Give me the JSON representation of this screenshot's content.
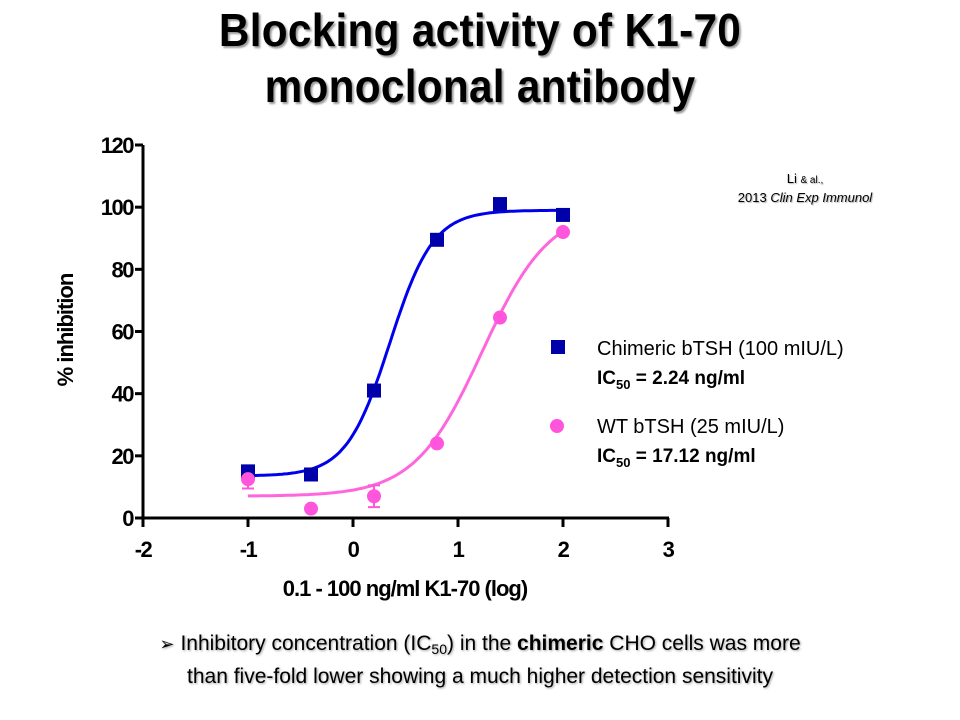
{
  "slide": {
    "title_line1": "Blocking activity of K1-70",
    "title_line2": "monoclonal antibody",
    "citation": {
      "author": "Li",
      "etal": "& al.,",
      "year": "2013",
      "journal": "Clin Exp Immunol"
    },
    "footer": {
      "bullet": "➢",
      "part1": "Inhibitory concentration (IC",
      "sub": "50",
      "part2": ") in the ",
      "bold": "chimeric",
      "part3": " CHO cells was more",
      "line2": "than five-fold lower showing a much higher detection sensitivity"
    }
  },
  "chart_data": {
    "type": "scatter",
    "title": "",
    "xlabel": "0.1 - 100 ng/ml K1-70 (log)",
    "ylabel": "% inhibition",
    "xlim": [
      -2,
      3
    ],
    "ylim": [
      0,
      120
    ],
    "xticks": [
      -2,
      -1,
      0,
      1,
      2,
      3
    ],
    "xtick_labels": [
      "-2",
      "-1",
      "0",
      "1",
      "2",
      "3"
    ],
    "yticks": [
      0,
      20,
      40,
      60,
      80,
      100,
      120
    ],
    "ytick_labels": [
      "0",
      "20",
      "40",
      "60",
      "80",
      "100",
      "120"
    ],
    "grid": false,
    "legend_position": "right",
    "series": [
      {
        "name": "Chimeric bTSH (100 mIU/L)",
        "ic50_label": "IC",
        "ic50_sub": "50",
        "ic50_value": " = 2.24 ng/ml",
        "marker": "square",
        "color": "#0000AA",
        "line_color": "#0000EE",
        "x": [
          -1,
          -0.4,
          0.2,
          0.8,
          1.4,
          2
        ],
        "y": [
          15,
          14,
          41,
          89.5,
          101,
          97.5
        ],
        "error": [
          1.5,
          0,
          0,
          0,
          0,
          0
        ],
        "fit": {
          "bottom": 13.5,
          "top": 99,
          "logEC50": 0.35,
          "hill": 2.1
        }
      },
      {
        "name": "WT bTSH (25 mIU/L)",
        "ic50_label": "IC",
        "ic50_sub": "50",
        "ic50_value": " = 17.12 ng/ml",
        "marker": "circle",
        "color": "#FF55DD",
        "line_color": "#FF66DD",
        "x": [
          -1,
          -0.4,
          0.2,
          0.8,
          1.4,
          2
        ],
        "y": [
          12.5,
          3,
          7,
          24,
          64.5,
          92
        ],
        "error": [
          3,
          0,
          3.5,
          0,
          0,
          0
        ],
        "fit": {
          "bottom": 7,
          "top": 100,
          "logEC50": 1.23,
          "hill": 1.35
        }
      }
    ]
  }
}
